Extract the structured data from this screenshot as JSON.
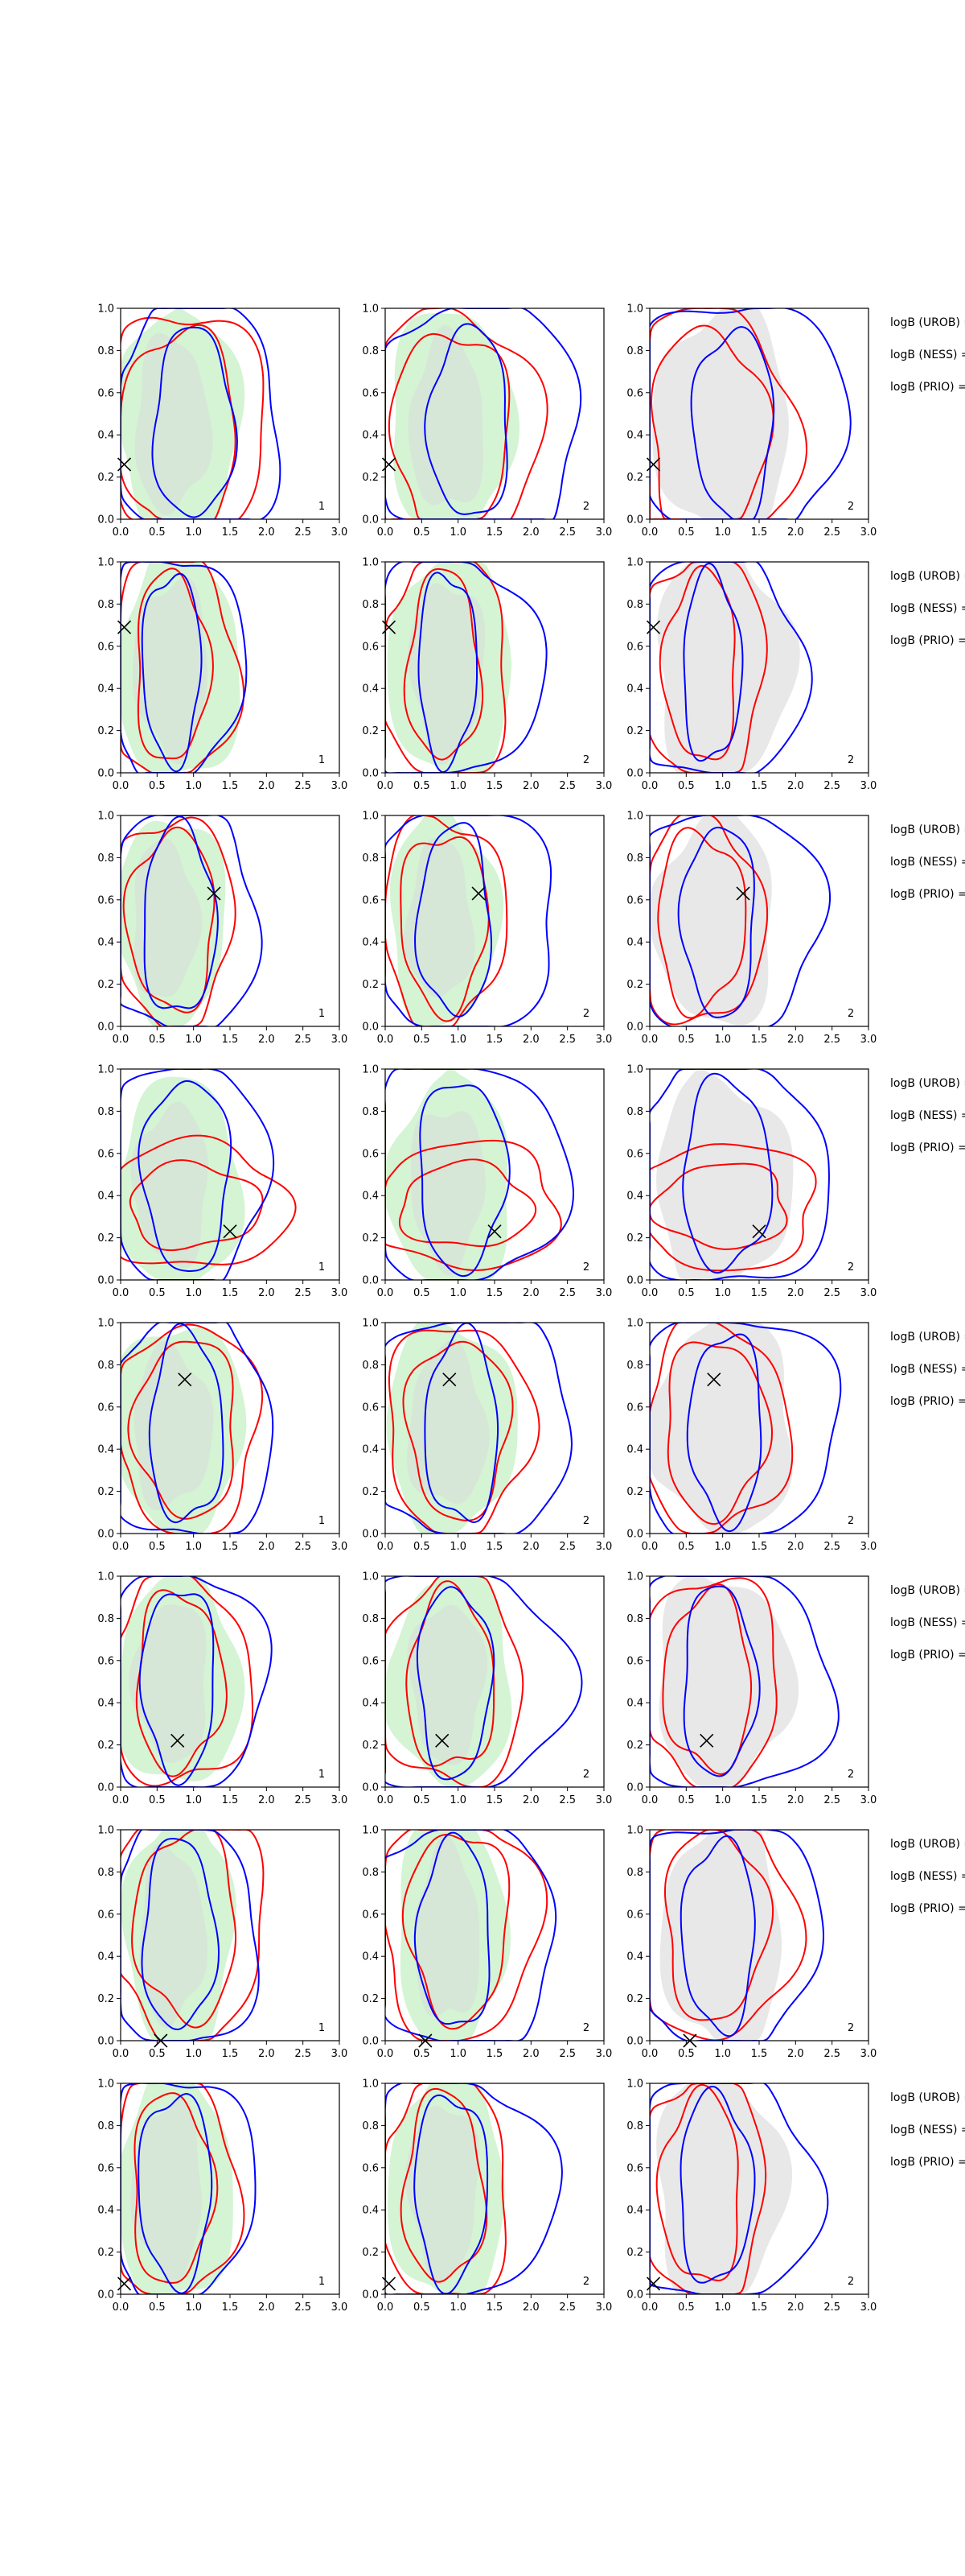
{
  "figure": {
    "rows": 8,
    "cols": 3,
    "colors": {
      "fill_green": "#c6f0c6",
      "fill_gray": "#d9d9d9",
      "contour_red": "#ff0000",
      "contour_blue": "#0000ff",
      "marker": "#000000"
    }
  },
  "chart_data": {
    "type": "contour",
    "axis": {
      "xlim": [
        0,
        3
      ],
      "ylim": [
        0,
        1
      ],
      "xticks": [
        "0.0",
        "0.5",
        "1.0",
        "1.5",
        "2.0",
        "2.5",
        "3.0"
      ],
      "yticks": [
        "0.0",
        "0.2",
        "0.4",
        "0.6",
        "0.8",
        "1.0"
      ],
      "grid": false
    },
    "panel_labels": [
      "1",
      "2",
      "2"
    ],
    "side_labels": [
      "logB (UROB) =",
      "logB (NESS) =",
      "logB (PRIO) ="
    ],
    "rows": [
      {
        "marker": [
          0.05,
          0.26
        ]
      },
      {
        "marker": [
          0.05,
          0.69
        ]
      },
      {
        "marker": [
          1.28,
          0.63
        ]
      },
      {
        "marker": [
          1.5,
          0.23
        ]
      },
      {
        "marker": [
          0.88,
          0.73
        ]
      },
      {
        "marker": [
          0.78,
          0.22
        ]
      },
      {
        "marker": [
          0.55,
          0.0
        ]
      },
      {
        "marker": [
          0.05,
          0.05
        ]
      }
    ]
  }
}
